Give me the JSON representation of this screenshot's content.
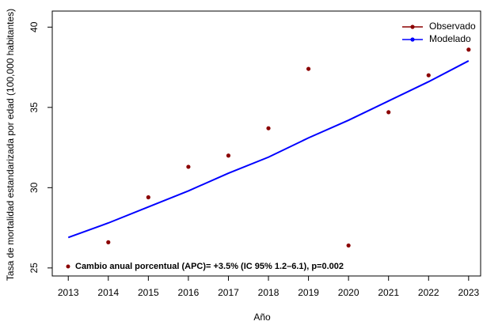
{
  "chart_data": {
    "type": "line",
    "x": [
      2013,
      2014,
      2015,
      2016,
      2017,
      2018,
      2019,
      2020,
      2021,
      2022,
      2023
    ],
    "series": [
      {
        "name": "Observado",
        "color": "#8b0000",
        "mode": "points",
        "values": [
          null,
          26.6,
          29.4,
          31.3,
          32.0,
          33.7,
          37.4,
          26.4,
          34.7,
          37.0,
          38.6
        ]
      },
      {
        "name": "Modelado",
        "color": "#0000ff",
        "mode": "line",
        "values": [
          26.9,
          27.8,
          28.8,
          29.8,
          30.9,
          31.9,
          33.1,
          34.2,
          35.4,
          36.6,
          37.9
        ]
      }
    ],
    "xlabel": "Año",
    "ylabel": "Tasa de mortalidad estandarizada por edad (100,000 habitantes)",
    "annotation": "Cambio anual porcentual (APC)= +3.5% (IC 95% 1.2–6.1), p=0.002",
    "xlim": [
      2012.6,
      2023.3
    ],
    "ylim": [
      24.5,
      41
    ],
    "xticks": [
      2013,
      2014,
      2015,
      2016,
      2017,
      2018,
      2019,
      2020,
      2021,
      2022,
      2023
    ],
    "yticks": [
      25,
      30,
      35,
      40
    ],
    "legend": "top-right"
  }
}
